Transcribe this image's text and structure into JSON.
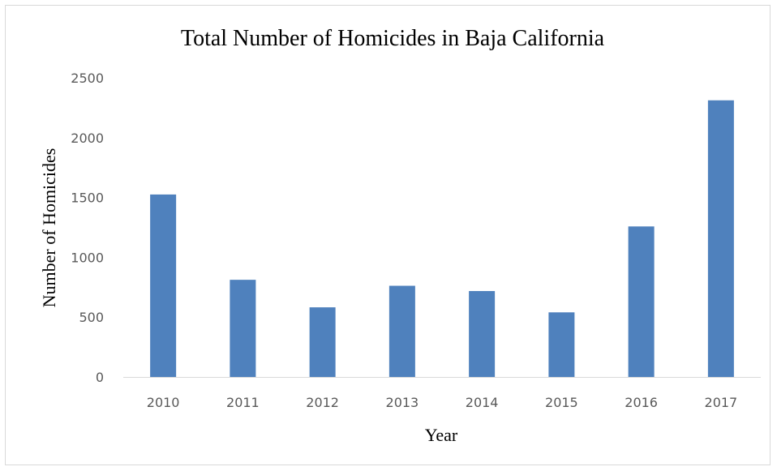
{
  "chart_data": {
    "type": "bar",
    "title": "Total Number of Homicides in Baja California",
    "xlabel": "Year",
    "ylabel": "Number of Homicides",
    "categories": [
      "2010",
      "2011",
      "2012",
      "2013",
      "2014",
      "2015",
      "2016",
      "2017"
    ],
    "values": [
      1525,
      812,
      582,
      762,
      718,
      540,
      1258,
      2312
    ],
    "ylim": [
      0,
      2500
    ],
    "yticks": [
      "0",
      "500",
      "1000",
      "1500",
      "2000",
      "2500"
    ],
    "grid": false,
    "legend": "none",
    "colors": {
      "bar": "#4f81bd",
      "axis": "#d9d9d9"
    }
  }
}
